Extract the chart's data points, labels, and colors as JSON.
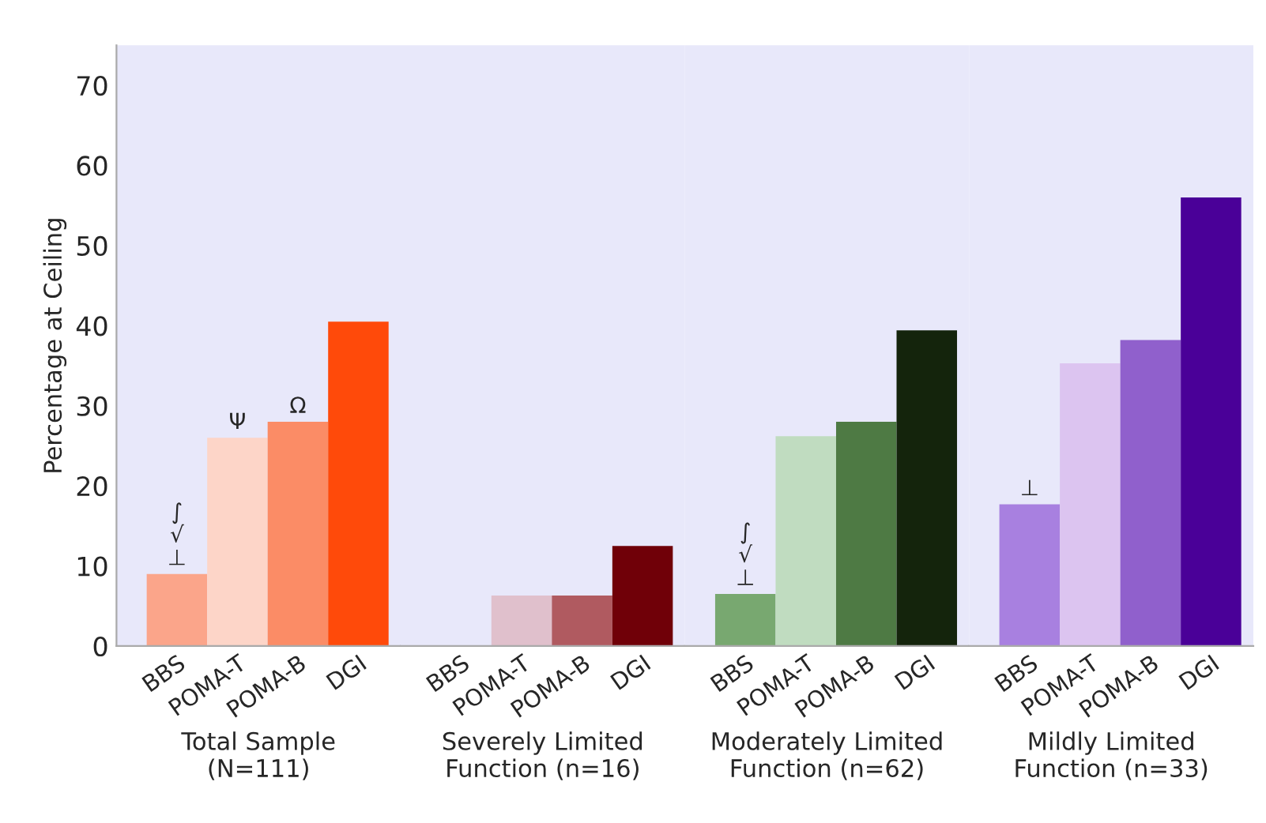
{
  "chart_data": [
    {
      "type": "bar",
      "ylabel": "Percentage at Ceiling",
      "xlabel": "Total Sample\n(N=111)",
      "categories": [
        "BBS",
        "POMA-T",
        "POMA-B",
        "DGI"
      ],
      "values": [
        9,
        26,
        28,
        40.5
      ],
      "colors": [
        "#fba58a",
        "#fdd5c8",
        "#fb8c66",
        "#ff4a0a"
      ],
      "ylim": [
        0,
        75
      ],
      "yticks": [
        0,
        10,
        20,
        30,
        40,
        50,
        60,
        70
      ],
      "annotations": [
        {
          "text": "∫\n√\n⊥",
          "x": "BBS",
          "y": 9
        },
        {
          "text": "Ψ",
          "x": "POMA-T",
          "y": 26
        },
        {
          "text": "Ω",
          "x": "POMA-B",
          "y": 28
        }
      ]
    },
    {
      "type": "bar",
      "xlabel": "Severely Limited\nFunction (n=16)",
      "categories": [
        "BBS",
        "POMA-T",
        "POMA-B",
        "DGI"
      ],
      "values": [
        0,
        6.3,
        6.3,
        12.5
      ],
      "colors": [
        "#f0d8dc",
        "#e0c0cc",
        "#b05a60",
        "#700008"
      ],
      "ylim": [
        0,
        75
      ],
      "tick_labels": "x"
    },
    {
      "type": "bar",
      "xlabel": "Moderately Limited\nFunction (n=62)",
      "categories": [
        "BBS",
        "POMA-T",
        "POMA-B",
        "DGI"
      ],
      "values": [
        6.5,
        26.2,
        28,
        39.4
      ],
      "colors": [
        "#78a870",
        "#c0dcc0",
        "#4e7a44",
        "#14240c"
      ],
      "ylim": [
        0,
        75
      ],
      "tick_labels": "x",
      "annotations": [
        {
          "text": "∫\n√\n⊥",
          "x": "BBS",
          "y": 6.5
        }
      ]
    },
    {
      "type": "bar",
      "xlabel": "Mildly Limited\nFunction (n=33)",
      "categories": [
        "BBS",
        "POMA-T",
        "POMA-B",
        "DGI"
      ],
      "values": [
        17.7,
        35.3,
        38.2,
        56
      ],
      "colors": [
        "#a880e0",
        "#dcc4f0",
        "#9060cc",
        "#4a0098"
      ],
      "ylim": [
        0,
        75
      ],
      "tick_labels": "x",
      "annotations": [
        {
          "text": "⊥",
          "x": "BBS",
          "y": 17.7
        }
      ]
    }
  ]
}
